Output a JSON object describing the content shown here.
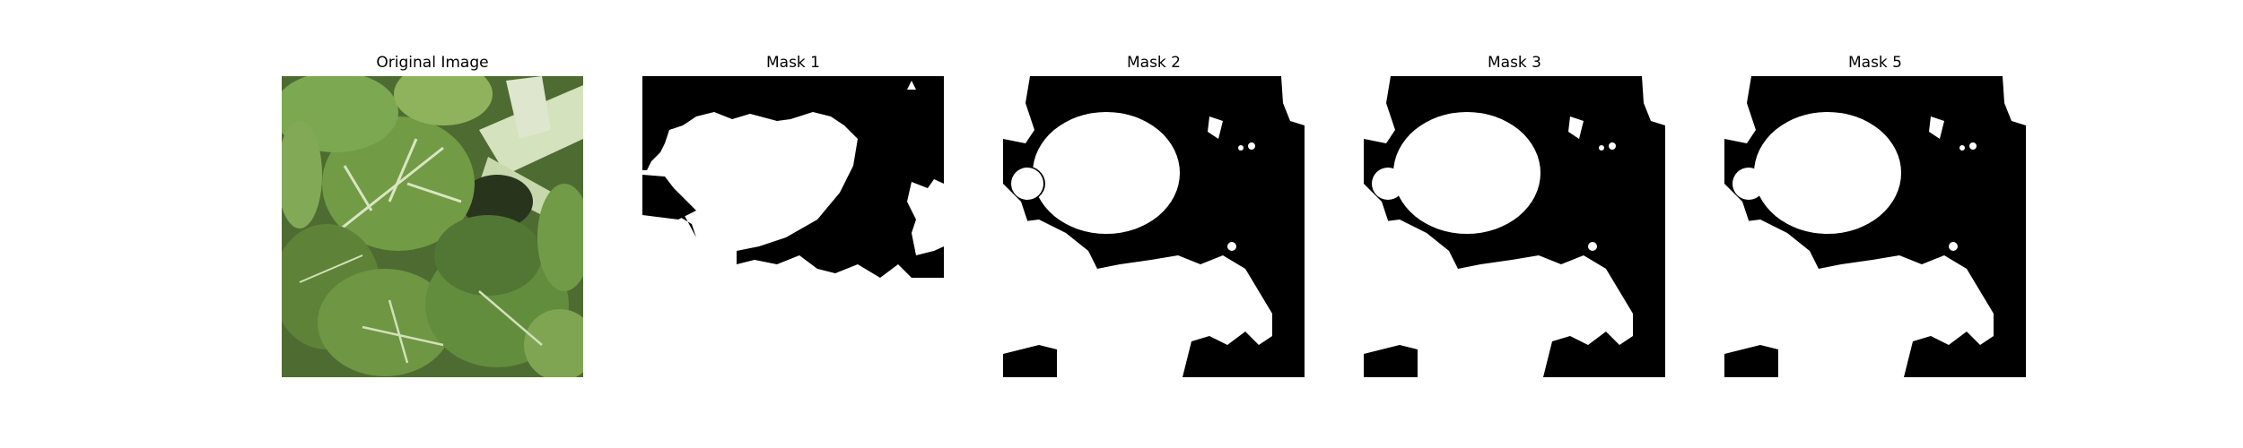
{
  "figure": {
    "panels": [
      {
        "title": "Original Image",
        "kind": "photo-leaves"
      },
      {
        "title": "Mask 1",
        "kind": "mask"
      },
      {
        "title": "Mask 2",
        "kind": "mask"
      },
      {
        "title": "Mask 3",
        "kind": "mask"
      },
      {
        "title": "Mask 5",
        "kind": "mask"
      }
    ],
    "colors": {
      "mask_foreground": "#ffffff",
      "mask_background": "#000000",
      "leaf": "#5f8a3d",
      "stem": "#cfe0b8"
    }
  }
}
